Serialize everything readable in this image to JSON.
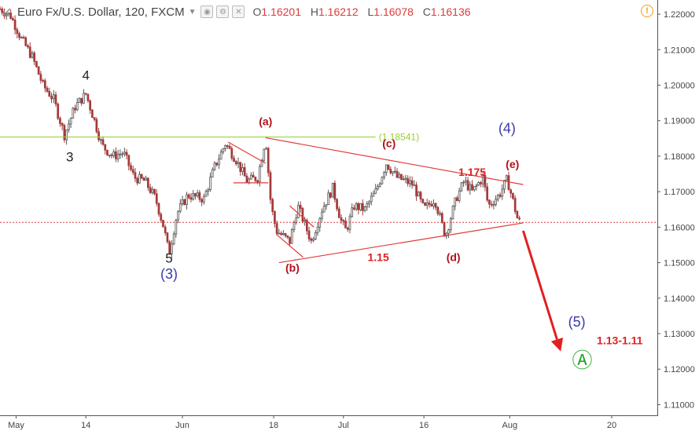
{
  "header": {
    "symbol_title": "Euro Fx/U.S. Dollar, 120, FXCM",
    "open_label": "O",
    "open": "1.16201",
    "high_label": "H",
    "high": "1.16212",
    "low_label": "L",
    "low": "1.16078",
    "close_label": "C",
    "close": "1.16136"
  },
  "chart_data": {
    "type": "candlestick",
    "ylim": [
      1.107,
      1.224
    ],
    "y_ticks": [
      "1.22000",
      "1.21000",
      "1.20000",
      "1.19000",
      "1.18000",
      "1.17000",
      "1.16000",
      "1.15000",
      "1.14000",
      "1.13000",
      "1.12000",
      "1.11000"
    ],
    "x_ticks": [
      {
        "label": "May",
        "day": 1
      },
      {
        "label": "14",
        "day": 14
      },
      {
        "label": "Jun",
        "day": 32
      },
      {
        "label": "18",
        "day": 49
      },
      {
        "label": "Jul",
        "day": 62
      },
      {
        "label": "16",
        "day": 77
      },
      {
        "label": "Aug",
        "day": 93
      },
      {
        "label": "20",
        "day": 112
      }
    ],
    "xlim": [
      -2,
      120.5
    ],
    "price_path": [
      [
        -2,
        1.2215
      ],
      [
        0,
        1.2195
      ],
      [
        2,
        1.213
      ],
      [
        4,
        1.208
      ],
      [
        6,
        1.2
      ],
      [
        8,
        1.196
      ],
      [
        10,
        1.186
      ],
      [
        12,
        1.194
      ],
      [
        14,
        1.1975
      ],
      [
        15.5,
        1.1905
      ],
      [
        17,
        1.183
      ],
      [
        19,
        1.18
      ],
      [
        21,
        1.181
      ],
      [
        23,
        1.174
      ],
      [
        25,
        1.173
      ],
      [
        27,
        1.168
      ],
      [
        28.5,
        1.16
      ],
      [
        29.5,
        1.1525
      ],
      [
        31,
        1.164
      ],
      [
        33,
        1.169
      ],
      [
        36,
        1.168
      ],
      [
        38,
        1.177
      ],
      [
        40,
        1.1835
      ],
      [
        42,
        1.179
      ],
      [
        44,
        1.173
      ],
      [
        46,
        1.174
      ],
      [
        47.5,
        1.1852
      ],
      [
        48.5,
        1.166
      ],
      [
        49.5,
        1.159
      ],
      [
        52,
        1.156
      ],
      [
        53.5,
        1.166
      ],
      [
        56,
        1.156
      ],
      [
        58,
        1.165
      ],
      [
        60,
        1.171
      ],
      [
        61.5,
        1.162
      ],
      [
        62.5,
        1.159
      ],
      [
        64,
        1.166
      ],
      [
        66,
        1.165
      ],
      [
        68,
        1.17
      ],
      [
        70,
        1.178
      ],
      [
        72,
        1.174
      ],
      [
        75,
        1.172
      ],
      [
        77,
        1.165
      ],
      [
        79,
        1.168
      ],
      [
        81,
        1.1575
      ],
      [
        83,
        1.168
      ],
      [
        84.5,
        1.173
      ],
      [
        86,
        1.17
      ],
      [
        88,
        1.174
      ],
      [
        89,
        1.166
      ],
      [
        91,
        1.169
      ],
      [
        92.5,
        1.1735
      ],
      [
        93.5,
        1.168
      ],
      [
        94.5,
        1.162
      ],
      [
        95,
        1.1612
      ]
    ],
    "horizontal_levels": [
      {
        "price": 1.18541,
        "label": "(1.18541)",
        "color": "#9acd32",
        "style": "solid",
        "x_from": -2,
        "x_to": 68
      },
      {
        "price": 1.16136,
        "color": "#e03a3a",
        "style": "dotted",
        "x_from": -2,
        "x_to": 120.5
      }
    ],
    "trendlines": [
      {
        "from": [
          47.5,
          1.1852
        ],
        "to": [
          95.5,
          1.172
        ]
      },
      {
        "from": [
          50.0,
          1.15
        ],
        "to": [
          95.5,
          1.1612
        ]
      },
      {
        "from": [
          40.5,
          1.184
        ],
        "to": [
          47.5,
          1.178
        ]
      },
      {
        "from": [
          41.5,
          1.1725
        ],
        "to": [
          48.0,
          1.1725
        ]
      },
      {
        "from": [
          49.5,
          1.158
        ],
        "to": [
          54.5,
          1.1515
        ]
      },
      {
        "from": [
          52.0,
          1.166
        ],
        "to": [
          56.5,
          1.16
        ]
      }
    ],
    "projection_arrow": {
      "from": [
        95.5,
        1.159
      ],
      "to": [
        102.5,
        1.125
      ],
      "color": "#e02020"
    },
    "annotations": [
      {
        "text": "4",
        "at": [
          14,
          1.2015
        ],
        "color": "#222222",
        "size": 17,
        "weight": "normal"
      },
      {
        "text": "3",
        "at": [
          11,
          1.1785
        ],
        "color": "#222222",
        "size": 17,
        "weight": "normal"
      },
      {
        "text": "5",
        "at": [
          29.5,
          1.15
        ],
        "color": "#222222",
        "size": 17,
        "weight": "normal"
      },
      {
        "text": "(3)",
        "at": [
          29.5,
          1.1455
        ],
        "color": "#3a3aa8",
        "size": 18,
        "weight": "normal"
      },
      {
        "text": "(a)",
        "at": [
          47.5,
          1.1887
        ],
        "color": "#b0101a",
        "size": 14,
        "weight": "bold"
      },
      {
        "text": "(b)",
        "at": [
          52.5,
          1.1475
        ],
        "color": "#b0101a",
        "size": 14,
        "weight": "bold"
      },
      {
        "text": "(c)",
        "at": [
          70.5,
          1.1825
        ],
        "color": "#b0101a",
        "size": 14,
        "weight": "bold"
      },
      {
        "text": "(d)",
        "at": [
          82.5,
          1.1505
        ],
        "color": "#b0101a",
        "size": 14,
        "weight": "bold"
      },
      {
        "text": "(e)",
        "at": [
          93.5,
          1.1767
        ],
        "color": "#b0101a",
        "size": 14,
        "weight": "bold"
      },
      {
        "text": "(4)",
        "at": [
          92.5,
          1.1865
        ],
        "color": "#3a3aa8",
        "size": 18,
        "weight": "normal"
      },
      {
        "text": "1.175",
        "at": [
          86,
          1.1745
        ],
        "color": "#e02020",
        "size": 14,
        "weight": "bold"
      },
      {
        "text": "1.15",
        "at": [
          68.5,
          1.1505
        ],
        "color": "#e02020",
        "size": 14,
        "weight": "bold"
      },
      {
        "text": "(5)",
        "at": [
          105.5,
          1.132
        ],
        "color": "#3a3aa8",
        "size": 18,
        "weight": "normal"
      },
      {
        "text": "1.13-1.11",
        "at": [
          113.5,
          1.127
        ],
        "color": "#e02020",
        "size": 14,
        "weight": "bold"
      },
      {
        "text": "Ⓐ",
        "at": [
          106.5,
          1.1205
        ],
        "color": "#27a327",
        "size": 26,
        "weight": "normal"
      }
    ],
    "up_color": "#555555",
    "down_color": "#a33a3a"
  }
}
